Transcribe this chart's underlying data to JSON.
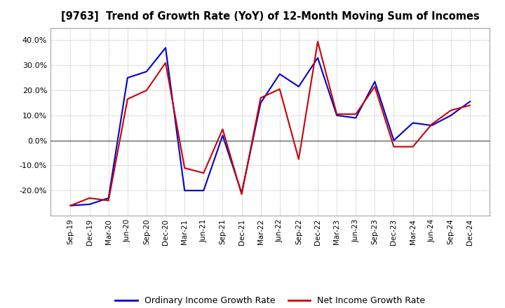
{
  "title": "[9763]  Trend of Growth Rate (YoY) of 12-Month Moving Sum of Incomes",
  "x_labels": [
    "Sep-19",
    "Dec-19",
    "Mar-20",
    "Jun-20",
    "Sep-20",
    "Dec-20",
    "Mar-21",
    "Jun-21",
    "Sep-21",
    "Dec-21",
    "Mar-22",
    "Jun-22",
    "Sep-22",
    "Dec-22",
    "Mar-23",
    "Jun-23",
    "Sep-23",
    "Dec-23",
    "Mar-24",
    "Jun-24",
    "Sep-24",
    "Dec-24"
  ],
  "ordinary_income": [
    -0.26,
    -0.255,
    -0.23,
    0.25,
    0.275,
    0.37,
    -0.2,
    -0.2,
    0.02,
    -0.21,
    0.15,
    0.265,
    0.215,
    0.33,
    0.1,
    0.09,
    0.235,
    0.0,
    0.07,
    0.06,
    0.1,
    0.155
  ],
  "net_income": [
    -0.26,
    -0.23,
    -0.24,
    0.165,
    0.2,
    0.31,
    -0.11,
    -0.13,
    0.045,
    -0.215,
    0.17,
    0.205,
    -0.075,
    0.395,
    0.105,
    0.105,
    0.215,
    -0.025,
    -0.025,
    0.065,
    0.12,
    0.14
  ],
  "ordinary_color": "#0000cc",
  "net_color": "#cc0000",
  "ylim": [
    -0.3,
    0.45
  ],
  "yticks": [
    -0.2,
    -0.1,
    0.0,
    0.1,
    0.2,
    0.3,
    0.4
  ],
  "background_color": "#ffffff",
  "plot_bg_color": "#ffffff",
  "grid_color": "#aaaaaa",
  "legend_labels": [
    "Ordinary Income Growth Rate",
    "Net Income Growth Rate"
  ]
}
